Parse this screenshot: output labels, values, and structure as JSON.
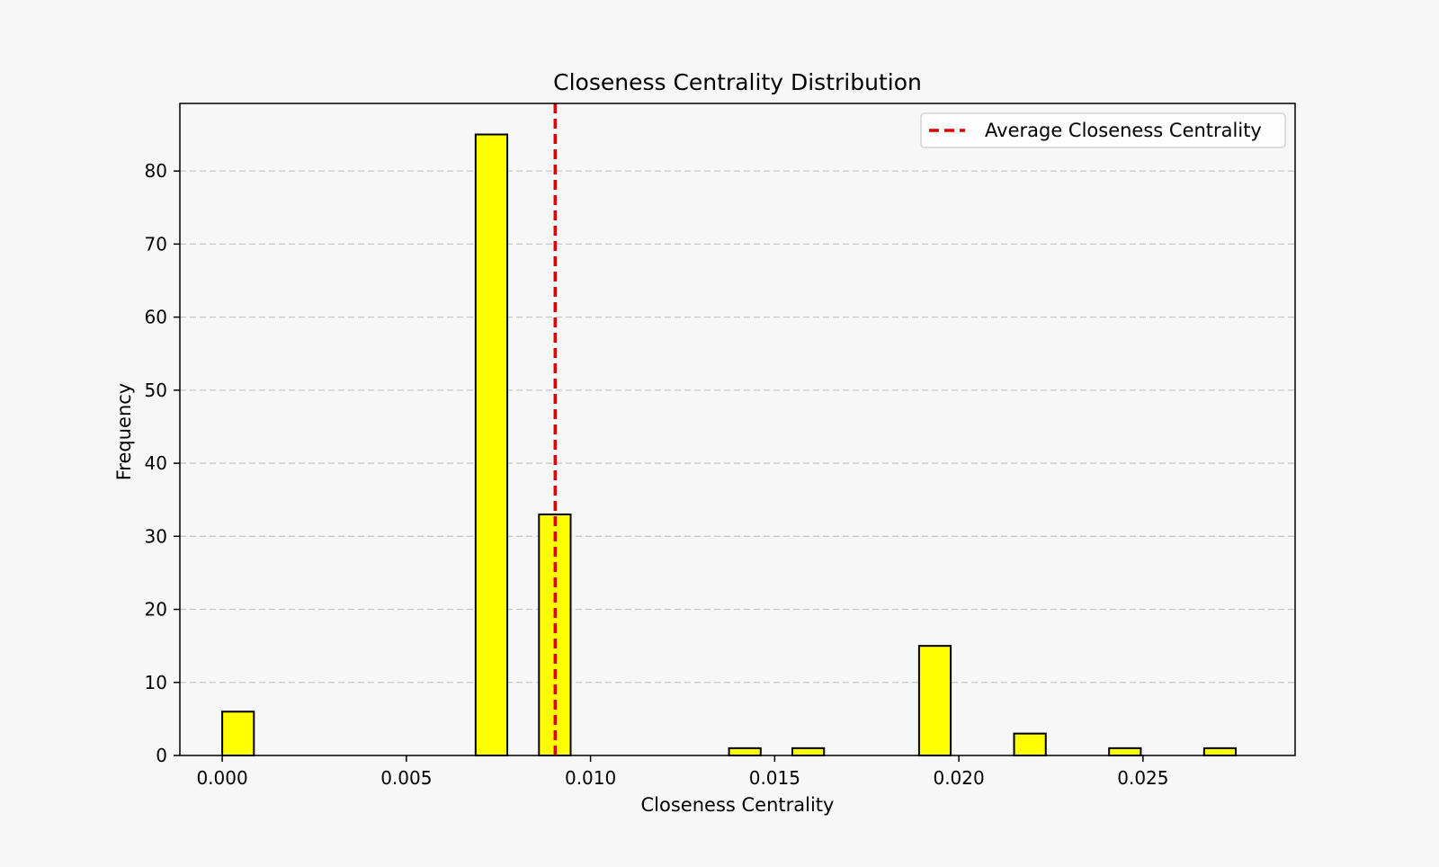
{
  "chart_data": {
    "type": "bar",
    "title": "Closeness Centrality Distribution",
    "xlabel": "Closeness Centrality",
    "ylabel": "Frequency",
    "xlim": [
      -0.00115,
      0.02913
    ],
    "ylim": [
      0,
      89.25
    ],
    "xticks": [
      "0.000",
      "0.005",
      "0.010",
      "0.015",
      "0.020",
      "0.025"
    ],
    "xtick_values": [
      0,
      0.005,
      0.01,
      0.015,
      0.02,
      0.025
    ],
    "yticks": [
      "0",
      "10",
      "20",
      "30",
      "40",
      "50",
      "60",
      "70",
      "80"
    ],
    "ytick_values": [
      0,
      10,
      20,
      30,
      40,
      50,
      60,
      70,
      80
    ],
    "grid": "y, dashed",
    "legend_position": "top-right",
    "bar_color": "#ffff00",
    "bar_edge_color": "#000000",
    "bin_width": 0.00086,
    "bins": [
      {
        "start": 0.0,
        "value": 6
      },
      {
        "start": 0.00688,
        "value": 85
      },
      {
        "start": 0.0086,
        "value": 33
      },
      {
        "start": 0.01376,
        "value": 1
      },
      {
        "start": 0.01548,
        "value": 1
      },
      {
        "start": 0.01892,
        "value": 15
      },
      {
        "start": 0.0215,
        "value": 3
      },
      {
        "start": 0.02408,
        "value": 1
      },
      {
        "start": 0.02666,
        "value": 1
      }
    ],
    "average_line": {
      "value": 0.00904,
      "color": "#dd0000",
      "style": "dashed",
      "label": "Average Closeness Centrality"
    }
  }
}
